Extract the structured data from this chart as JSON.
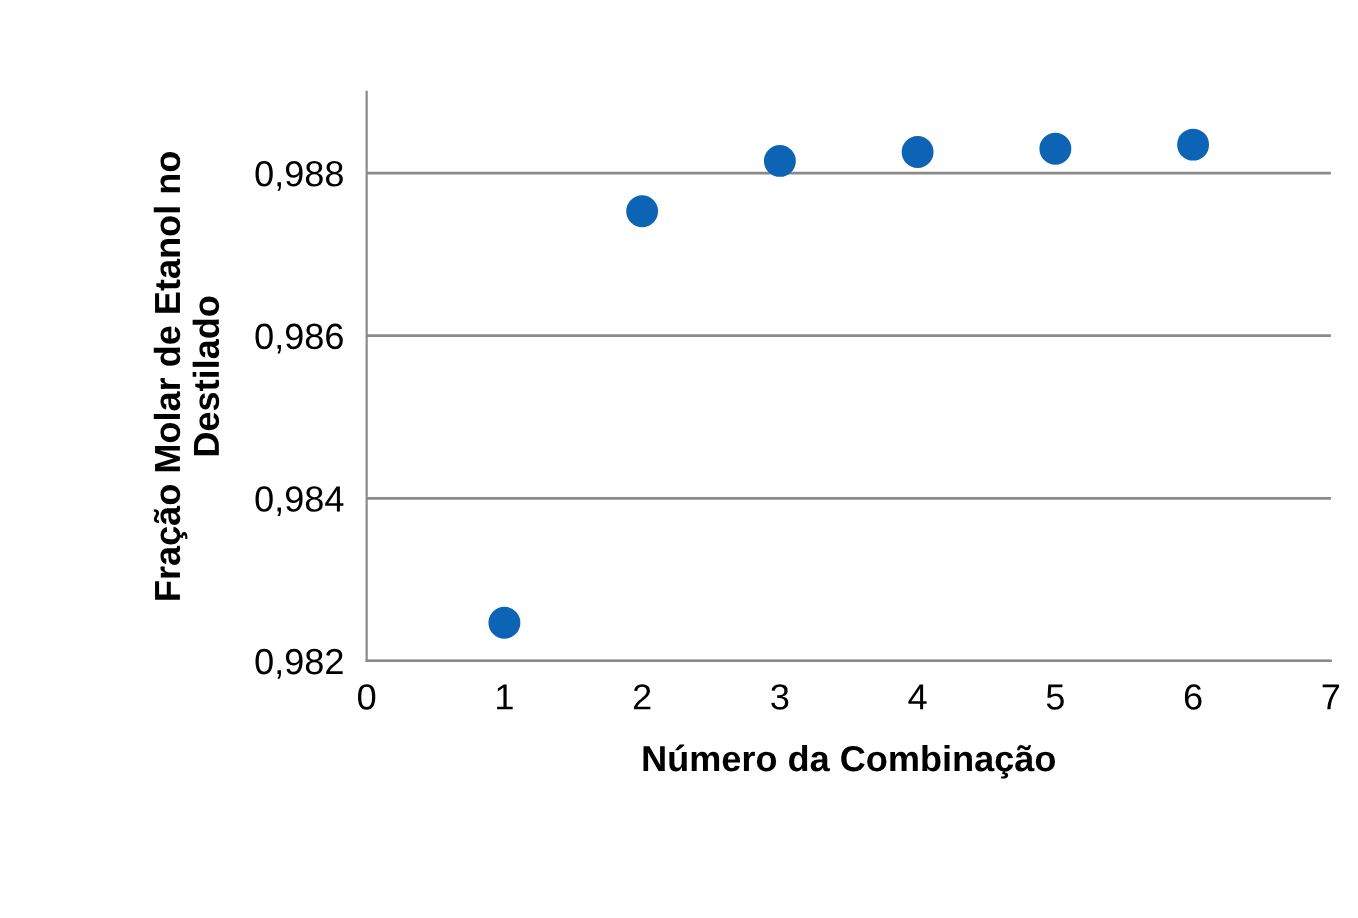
{
  "chart_data": {
    "type": "scatter",
    "xlabel": "Número da Combinação",
    "ylabel": "Fração Molar de Etanol no\nDestilado",
    "x": [
      1,
      2,
      3,
      4,
      5,
      6
    ],
    "series": [
      {
        "color": "#0e64b4",
        "values": [
          0.98247,
          0.98753,
          0.98815,
          0.98826,
          0.9883,
          0.98835
        ]
      }
    ],
    "xlim": [
      0,
      7
    ],
    "xticks": [
      0,
      1,
      2,
      3,
      4,
      5,
      6,
      7
    ],
    "ylim": [
      0.982,
      0.989
    ],
    "yticks": [
      {
        "value": 0.982,
        "label": "0,982"
      },
      {
        "value": 0.984,
        "label": "0,984"
      },
      {
        "value": 0.986,
        "label": "0,986"
      },
      {
        "value": 0.988,
        "label": "0,988"
      }
    ],
    "grid": "y",
    "marker": "circle"
  }
}
